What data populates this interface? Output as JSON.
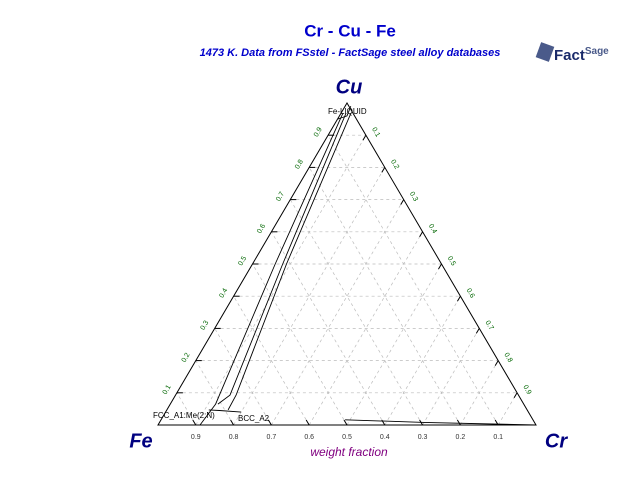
{
  "logo_text": [
    "Fact",
    "Sage"
  ],
  "chart_data": {
    "type": "ternary",
    "title": "Cr - Cu - Fe",
    "subtitle": "1473 K.  Data from FSstel - FactSage steel alloy databases",
    "axis_label": "weight fraction",
    "corners": {
      "left": "Fe",
      "right": "Cr",
      "top": "Cu"
    },
    "fe_ticks": [
      0.1,
      0.2,
      0.3,
      0.4,
      0.5,
      0.6,
      0.7,
      0.8,
      0.9
    ],
    "cr_ticks": [
      0.1,
      0.2,
      0.3,
      0.4,
      0.5,
      0.6,
      0.7,
      0.8,
      0.9
    ],
    "cu_ticks": [
      0.1,
      0.2,
      0.3,
      0.4,
      0.5,
      0.6,
      0.7,
      0.8,
      0.9
    ],
    "grid": true,
    "line_color": "#000000",
    "lines": [
      {
        "cr": [
          0.005,
          0.06,
          0.12,
          0.111
        ],
        "cu": [
          0.969,
          0.5,
          0.065,
          0.0
        ]
      },
      {
        "cr": [
          0.013,
          0.08,
          0.144,
          0.126
        ],
        "cu": [
          0.969,
          0.5,
          0.093,
          0.065
        ]
      },
      {
        "cr": [
          0.026,
          0.09,
          0.16,
          0.162
        ],
        "cu": [
          0.969,
          0.5,
          0.093,
          0.047
        ]
      },
      {
        "cr": [
          0.0,
          0.01,
          0.02,
          0.015
        ],
        "cu": [
          0.95,
          0.955,
          0.96,
          0.99
        ]
      },
      {
        "cr": [
          0.111,
          0.14,
          0.2
        ],
        "cu": [
          0.047,
          0.045,
          0.04
        ]
      },
      {
        "cr": [
          0.487,
          0.7,
          1.0
        ],
        "cu": [
          0.016,
          0.008,
          0.0
        ]
      }
    ],
    "annotations": [
      "Fe-LIQUID",
      "FCC_A1:Me(2:N)",
      "BCC_A2"
    ]
  }
}
